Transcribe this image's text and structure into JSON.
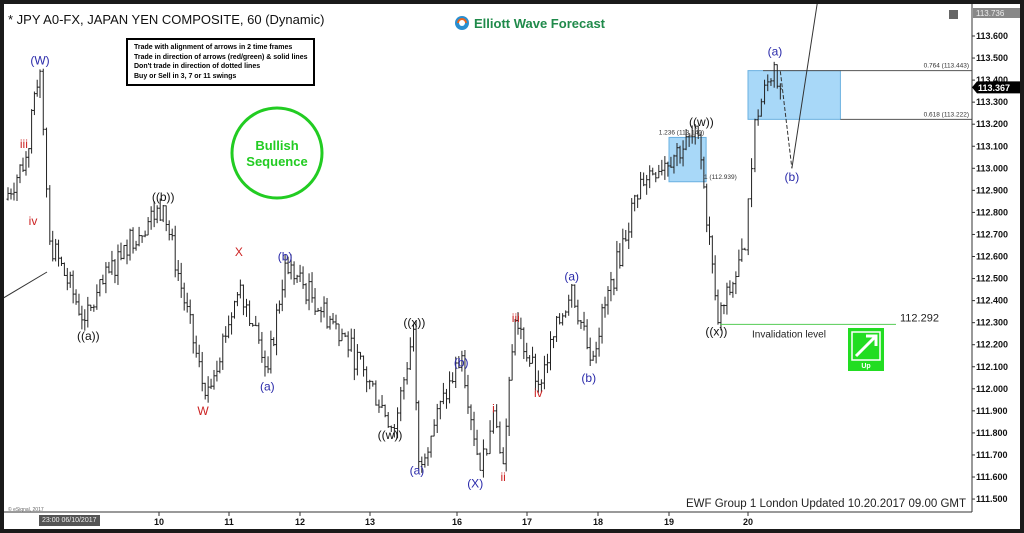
{
  "header": {
    "title": "* JPY A0-FX, JAPAN YEN COMPOSITE, 60 (Dynamic)",
    "logo": "Elliott Wave Forecast"
  },
  "rules": [
    "Trade with alignment of arrows in 2 time frames",
    "Trade in direction of arrows (red/green) & solid lines",
    "Don't trade in direction of dotted lines",
    "Buy or Sell in 3, 7 or 11 swings"
  ],
  "badge": {
    "text": "Bullish Sequence",
    "color": "#22cc22"
  },
  "footer": "EWF Group 1 London Updated 10.20.2017 09.00 GMT",
  "copyright": "© eSignal, 2017",
  "x_axis_start_label": "23:00 06/10/2017",
  "invalidation": {
    "label": "Invalidation level",
    "value": "112.292",
    "color": "#55cc55"
  },
  "signal": {
    "label": "Up",
    "icon": "arrow-up-right-icon",
    "color": "#22dd22"
  },
  "chart_data": {
    "type": "ohlc",
    "symbol": "JPY A0-FX",
    "timeframe": "60",
    "x_ticks": [
      "10",
      "11",
      "12",
      "13",
      "16",
      "17",
      "18",
      "19",
      "20"
    ],
    "y_ticks": [
      "113.600",
      "113.500",
      "113.400",
      "113.300",
      "113.200",
      "113.100",
      "113.000",
      "112.900",
      "112.800",
      "112.700",
      "112.600",
      "112.500",
      "112.400",
      "112.300",
      "112.200",
      "112.100",
      "112.000",
      "111.900",
      "111.800",
      "111.700",
      "111.600",
      "111.500"
    ],
    "ylim": [
      111.45,
      113.75
    ],
    "top_price": "113.736",
    "last_price": "113.367",
    "price_path": [
      {
        "day": 7.8,
        "price": 112.86
      },
      {
        "day": 8.1,
        "price": 113.05
      },
      {
        "day": 8.3,
        "price": 113.44
      },
      {
        "day": 8.44,
        "price": 112.67
      },
      {
        "day": 8.94,
        "price": 112.31
      },
      {
        "day": 9.5,
        "price": 112.65
      },
      {
        "day": 10.06,
        "price": 112.83
      },
      {
        "day": 10.66,
        "price": 111.97
      },
      {
        "day": 11.16,
        "price": 112.47
      },
      {
        "day": 11.55,
        "price": 112.09
      },
      {
        "day": 11.79,
        "price": 112.57
      },
      {
        "day": 12.6,
        "price": 112.25
      },
      {
        "day": 13.28,
        "price": 111.82
      },
      {
        "day": 13.5,
        "price": 112.27
      },
      {
        "day": 13.56,
        "price": 111.67
      },
      {
        "day": 16.07,
        "price": 112.15
      },
      {
        "day": 16.33,
        "price": 111.63
      },
      {
        "day": 16.52,
        "price": 111.9
      },
      {
        "day": 16.66,
        "price": 111.66
      },
      {
        "day": 16.83,
        "price": 112.31
      },
      {
        "day": 17.16,
        "price": 112.02
      },
      {
        "day": 17.63,
        "price": 112.47
      },
      {
        "day": 17.89,
        "price": 112.13
      },
      {
        "day": 18.6,
        "price": 112.95
      },
      {
        "day": 19.37,
        "price": 113.15
      },
      {
        "day": 19.62,
        "price": 112.3
      },
      {
        "day": 19.96,
        "price": 112.63
      },
      {
        "day": 20.09,
        "price": 113.22
      },
      {
        "day": 20.34,
        "price": 113.47
      },
      {
        "day": 20.42,
        "price": 113.36
      }
    ],
    "projection": {
      "b_target": {
        "day": 20.57,
        "price": 113.0
      },
      "solid_end": {
        "day": 20.9,
        "price": 113.75
      }
    },
    "zones": [
      {
        "from_day": 19.0,
        "to_day": 19.47,
        "top": 113.14,
        "bottom": 112.939,
        "labels": [
          "1.236 (113.140)",
          "1 (112.939)"
        ]
      },
      {
        "from_day": 20.0,
        "to_day": 21.2,
        "top": 113.443,
        "bottom": 113.222,
        "labels": [
          "0.764 (113.443)",
          "0.618 (113.222)"
        ]
      }
    ],
    "zone_color": "#a8d8f8",
    "wave_labels": [
      {
        "text": "(W)",
        "color": "#2a2aaa",
        "day": 8.3,
        "price": 113.49
      },
      {
        "text": "iii",
        "color": "#cc2222",
        "day": 8.07,
        "price": 113.11
      },
      {
        "text": "iv",
        "color": "#cc2222",
        "day": 8.2,
        "price": 112.76
      },
      {
        "text": "((a))",
        "color": "#111111",
        "day": 8.99,
        "price": 112.24
      },
      {
        "text": "((b))",
        "color": "#111111",
        "day": 10.06,
        "price": 112.87
      },
      {
        "text": "X",
        "color": "#cc2222",
        "day": 11.14,
        "price": 112.62
      },
      {
        "text": "(b)",
        "color": "#2a2aaa",
        "day": 11.79,
        "price": 112.6
      },
      {
        "text": "W",
        "color": "#cc2222",
        "day": 10.63,
        "price": 111.9
      },
      {
        "text": "(a)",
        "color": "#2a2aaa",
        "day": 11.54,
        "price": 112.01
      },
      {
        "text": "((x))",
        "color": "#111111",
        "day": 13.51,
        "price": 112.3
      },
      {
        "text": "((w))",
        "color": "#111111",
        "day": 13.23,
        "price": 111.79
      },
      {
        "text": "(a)",
        "color": "#2a2aaa",
        "day": 13.54,
        "price": 111.63
      },
      {
        "text": "(b)",
        "color": "#2a2aaa",
        "day": 16.06,
        "price": 112.12
      },
      {
        "text": "(X)",
        "color": "#2a2aaa",
        "day": 16.26,
        "price": 111.57
      },
      {
        "text": "i",
        "color": "#cc2222",
        "day": 16.52,
        "price": 111.91
      },
      {
        "text": "ii",
        "color": "#cc2222",
        "day": 16.66,
        "price": 111.6
      },
      {
        "text": "iii",
        "color": "#cc2222",
        "day": 16.84,
        "price": 112.32
      },
      {
        "text": "iv",
        "color": "#cc2222",
        "day": 17.16,
        "price": 111.98
      },
      {
        "text": "(a)",
        "color": "#2a2aaa",
        "day": 17.63,
        "price": 112.51
      },
      {
        "text": "(b)",
        "color": "#2a2aaa",
        "day": 17.87,
        "price": 112.05
      },
      {
        "text": "((w))",
        "color": "#111111",
        "day": 19.41,
        "price": 113.21
      },
      {
        "text": "((x))",
        "color": "#111111",
        "day": 19.6,
        "price": 112.26
      },
      {
        "text": "(a)",
        "color": "#2a2aaa",
        "day": 20.35,
        "price": 113.53
      },
      {
        "text": "(b)",
        "color": "#2a2aaa",
        "day": 20.57,
        "price": 112.96
      }
    ]
  }
}
